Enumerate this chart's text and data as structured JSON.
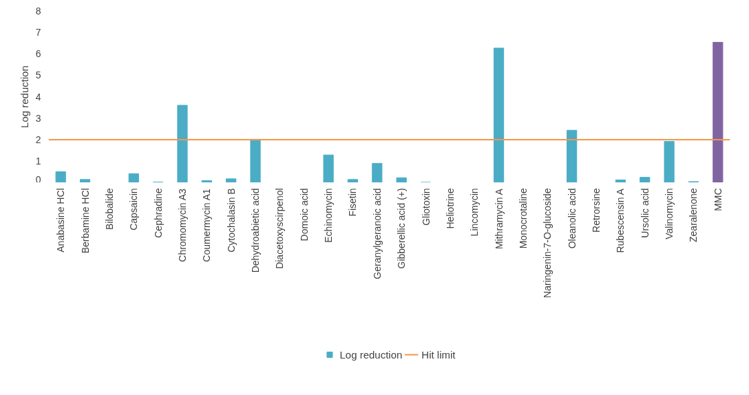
{
  "chart_data": {
    "type": "bar",
    "ylabel": "Log reduction",
    "categories": [
      "Anabasine HCl",
      "Berbamine HCl",
      "Bilobalide",
      "Capsaicin",
      "Cephradine",
      "Chromomycin A3",
      "Coumermycin A1",
      "Cytochalasin B",
      "Dehydroabietic acid",
      "Diacetoxyscirpenol",
      "Domoic acid",
      "Echinomycin",
      "Fisetin",
      "Geranylgeranoic acid",
      "Gibberellic acid (+)",
      "Gliotoxin",
      "Heliotrine",
      "Lincomycin",
      "Mithramycin A",
      "Monocrotaline",
      "Naringenin-7-O-glucoside",
      "Oleanolic acid",
      "Retrorsine",
      "Rubescensin A",
      "Ursolic acid",
      "Valinomycin",
      "Zearalenone",
      "MMC"
    ],
    "series": [
      {
        "name": "Log reduction",
        "color": "#4bacc6",
        "colors": [
          "#4bacc6",
          "#4bacc6",
          "#4bacc6",
          "#4bacc6",
          "#4bacc6",
          "#4bacc6",
          "#4bacc6",
          "#4bacc6",
          "#4bacc6",
          "#4bacc6",
          "#4bacc6",
          "#4bacc6",
          "#4bacc6",
          "#4bacc6",
          "#4bacc6",
          "#4bacc6",
          "#4bacc6",
          "#4bacc6",
          "#4bacc6",
          "#4bacc6",
          "#4bacc6",
          "#4bacc6",
          "#4bacc6",
          "#4bacc6",
          "#4bacc6",
          "#4bacc6",
          "#4bacc6",
          "#8064a2"
        ],
        "values": [
          0.51,
          0.15,
          0,
          0.42,
          0.03,
          3.6,
          0.1,
          0.18,
          2.02,
          0,
          0,
          1.29,
          0.15,
          0.9,
          0.23,
          0.02,
          0,
          0,
          6.26,
          0,
          0,
          2.44,
          0,
          0.13,
          0.25,
          1.92,
          0.05,
          6.53
        ]
      }
    ],
    "ref_lines": [
      {
        "axis": "y",
        "value": 2,
        "label": "Hit limit",
        "color": "#f79646"
      }
    ],
    "ylim": [
      0,
      8
    ],
    "yticks": [
      0,
      1,
      2,
      3,
      4,
      5,
      6,
      7,
      8
    ],
    "grid": false,
    "legend": "bottom"
  }
}
